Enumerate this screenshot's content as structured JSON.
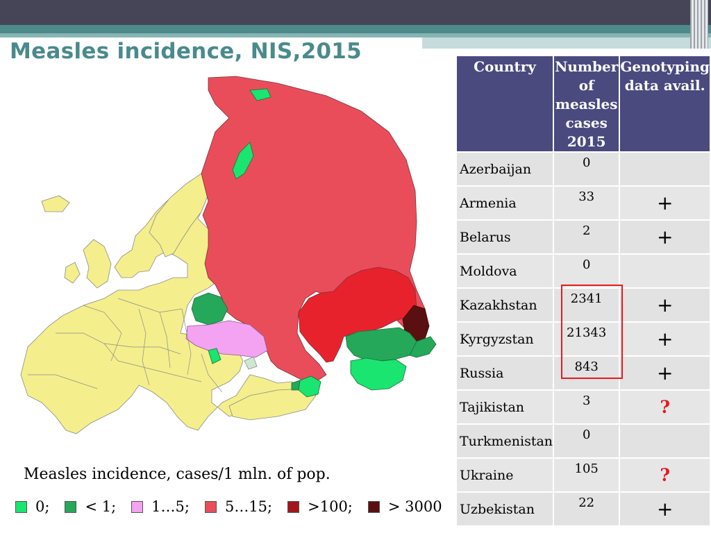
{
  "title": "Measles incidence, NIS,2015",
  "map_caption": "Measles incidence, cases/1 mln. of pop.",
  "legend": [
    {
      "label": "0;",
      "color": "#19e570"
    },
    {
      "label": "< 1;",
      "color": "#25a85a"
    },
    {
      "label": "1…5;",
      "color": "#f3a3f1"
    },
    {
      "label": "5…15;",
      "color": "#ea4d5a"
    },
    {
      "label": ">100;",
      "color": "#a3161c"
    },
    {
      "label": "> 3000",
      "color": "#5a1010"
    }
  ],
  "table": {
    "headers": [
      "Country",
      "Number of measles cases 2015",
      "Genotyping data avail."
    ],
    "rows": [
      {
        "country": "Azerbaijan",
        "cases": "0",
        "genotyping": ""
      },
      {
        "country": "Armenia",
        "cases": "33",
        "genotyping": "+"
      },
      {
        "country": "Belarus",
        "cases": "2",
        "genotyping": "+"
      },
      {
        "country": "Moldova",
        "cases": "0",
        "genotyping": ""
      },
      {
        "country": "Kazakhstan",
        "cases": "2341",
        "genotyping": "+"
      },
      {
        "country": "Kyrgyzstan",
        "cases": "21343",
        "genotyping": "+"
      },
      {
        "country": "Russia",
        "cases": "843",
        "genotyping": "+"
      },
      {
        "country": "Tajikistan",
        "cases": "3",
        "genotyping": "?"
      },
      {
        "country": "Turkmenistan",
        "cases": "0",
        "genotyping": ""
      },
      {
        "country": "Ukraine",
        "cases": "105",
        "genotyping": "?"
      },
      {
        "country": "Uzbekistan",
        "cases": "22",
        "genotyping": "+"
      }
    ]
  },
  "colors": {
    "header_bar": "#454557",
    "accent_teal": "#4a8a8c",
    "table_header": "#4a4a7f",
    "highlight": "#e8181e",
    "europe": "#f4ef8c",
    "russia": "#ea4d5a",
    "kazakhstan": "#e8222d"
  }
}
